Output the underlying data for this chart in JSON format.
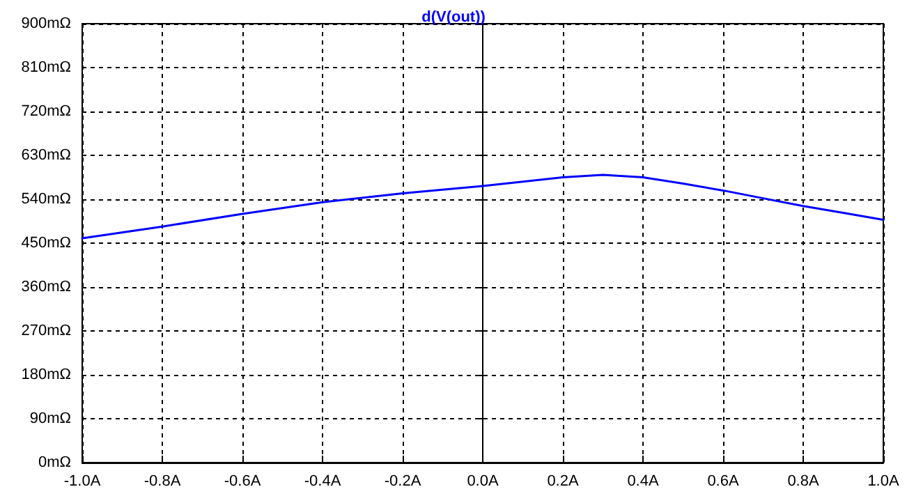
{
  "chart_data": {
    "type": "line",
    "title": "d(V(out))",
    "x": [
      -1.0,
      -0.8,
      -0.6,
      -0.4,
      -0.2,
      0.0,
      0.1,
      0.2,
      0.3,
      0.4,
      0.5,
      0.6,
      0.7,
      0.8,
      0.9,
      1.0
    ],
    "series": [
      {
        "color": "#0000ff",
        "values": [
          460,
          484,
          510,
          534,
          552,
          567,
          576,
          585,
          590,
          585,
          572,
          558,
          542,
          526,
          512,
          498
        ]
      }
    ],
    "xlim": [
      -1.0,
      1.0
    ],
    "xticks": [
      {
        "value": -1.0,
        "label": "-1.0A"
      },
      {
        "value": -0.8,
        "label": "-0.8A"
      },
      {
        "value": -0.6,
        "label": "-0.6A"
      },
      {
        "value": -0.4,
        "label": "-0.4A"
      },
      {
        "value": -0.2,
        "label": "-0.2A"
      },
      {
        "value": 0.0,
        "label": "0.0A"
      },
      {
        "value": 0.2,
        "label": "0.2A"
      },
      {
        "value": 0.4,
        "label": "0.4A"
      },
      {
        "value": 0.6,
        "label": "0.6A"
      },
      {
        "value": 0.8,
        "label": "0.8A"
      },
      {
        "value": 1.0,
        "label": "1.0A"
      }
    ],
    "ylim": [
      0,
      900
    ],
    "yticks": [
      {
        "value": 0,
        "label": "0mΩ"
      },
      {
        "value": 90,
        "label": "90mΩ"
      },
      {
        "value": 180,
        "label": "180mΩ"
      },
      {
        "value": 270,
        "label": "270mΩ"
      },
      {
        "value": 360,
        "label": "360mΩ"
      },
      {
        "value": 450,
        "label": "450mΩ"
      },
      {
        "value": 540,
        "label": "540mΩ"
      },
      {
        "value": 630,
        "label": "630mΩ"
      },
      {
        "value": 720,
        "label": "720mΩ"
      },
      {
        "value": 810,
        "label": "810mΩ"
      },
      {
        "value": 900,
        "label": "900mΩ"
      }
    ],
    "grid": true,
    "marker": "none",
    "line_style": "solid"
  }
}
